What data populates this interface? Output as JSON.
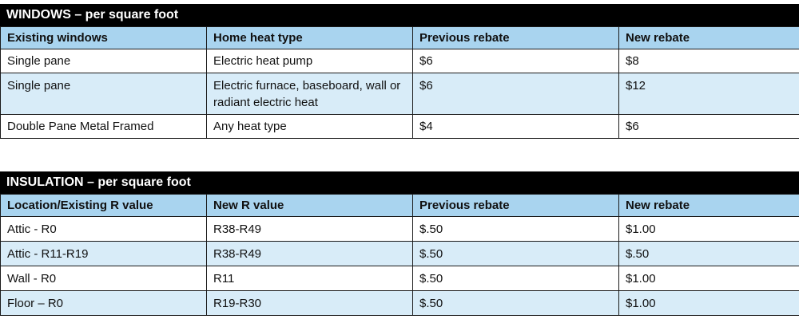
{
  "windows": {
    "title": "WINDOWS – per square foot",
    "headers": [
      "Existing windows",
      "Home heat type",
      "Previous rebate",
      "New rebate"
    ],
    "rows": [
      [
        "Single pane",
        "Electric heat pump",
        "$6",
        "$8"
      ],
      [
        "Single pane",
        "Electric furnace, baseboard, wall or radiant electric heat",
        "$6",
        "$12"
      ],
      [
        "Double Pane Metal Framed",
        "Any heat type",
        "$4",
        "$6"
      ]
    ]
  },
  "insulation": {
    "title": "INSULATION – per square foot",
    "headers": [
      "Location/Existing R value",
      "New R value",
      "Previous rebate",
      "New rebate"
    ],
    "rows": [
      [
        "Attic - R0",
        "R38-R49",
        "$.50",
        "$1.00"
      ],
      [
        "Attic - R11-R19",
        "R38-R49",
        "$.50",
        "$.50"
      ],
      [
        "Wall - R0",
        "R11",
        "$.50",
        "$1.00"
      ],
      [
        "Floor – R0",
        "R19-R30",
        "$.50",
        "$1.00"
      ]
    ]
  }
}
